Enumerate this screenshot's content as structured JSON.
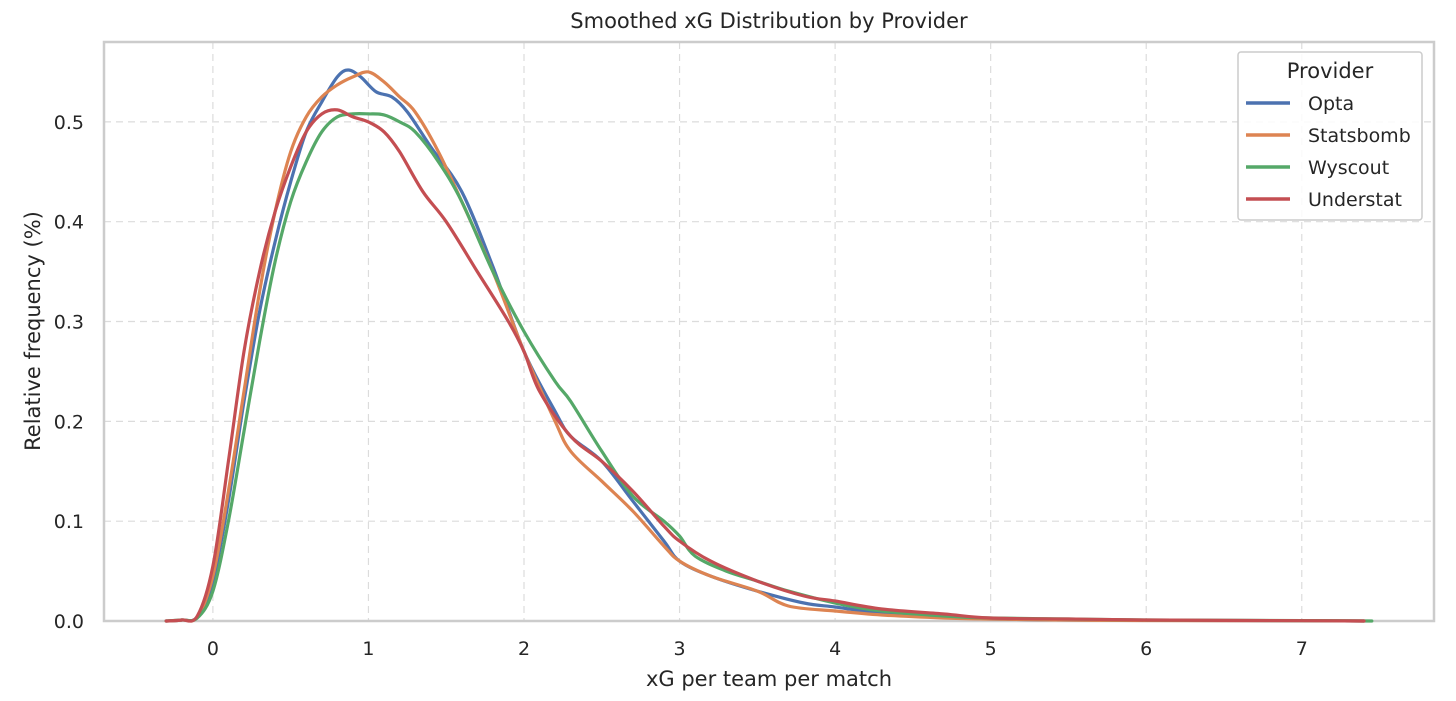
{
  "chart_data": {
    "type": "line",
    "title": "Smoothed xG Distribution by Provider",
    "xlabel": "xG per team per match",
    "ylabel": "Relative frequency (%)",
    "xlim": [
      -0.7,
      7.85
    ],
    "ylim": [
      0,
      0.58
    ],
    "xticks": [
      0,
      1,
      2,
      3,
      4,
      5,
      6,
      7
    ],
    "xtick_labels": [
      "0",
      "1",
      "2",
      "3",
      "4",
      "5",
      "6",
      "7"
    ],
    "yticks": [
      0.0,
      0.1,
      0.2,
      0.3,
      0.4,
      0.5
    ],
    "ytick_labels": [
      "0.0",
      "0.1",
      "0.2",
      "0.3",
      "0.4",
      "0.5"
    ],
    "grid": true,
    "legend": {
      "title": "Provider",
      "position": "top-right"
    },
    "series": [
      {
        "name": "Opta",
        "color": "#4c72b0",
        "points": [
          [
            -0.3,
            0.0
          ],
          [
            -0.2,
            0.001
          ],
          [
            -0.1,
            0.004
          ],
          [
            0.0,
            0.04
          ],
          [
            0.1,
            0.12
          ],
          [
            0.2,
            0.22
          ],
          [
            0.3,
            0.31
          ],
          [
            0.4,
            0.38
          ],
          [
            0.5,
            0.44
          ],
          [
            0.6,
            0.49
          ],
          [
            0.7,
            0.52
          ],
          [
            0.8,
            0.545
          ],
          [
            0.87,
            0.552
          ],
          [
            0.95,
            0.545
          ],
          [
            1.05,
            0.53
          ],
          [
            1.15,
            0.525
          ],
          [
            1.25,
            0.51
          ],
          [
            1.4,
            0.475
          ],
          [
            1.6,
            0.43
          ],
          [
            1.8,
            0.355
          ],
          [
            2.0,
            0.27
          ],
          [
            2.2,
            0.21
          ],
          [
            2.3,
            0.185
          ],
          [
            2.5,
            0.16
          ],
          [
            2.7,
            0.12
          ],
          [
            2.9,
            0.08
          ],
          [
            3.0,
            0.06
          ],
          [
            3.2,
            0.045
          ],
          [
            3.5,
            0.03
          ],
          [
            3.8,
            0.018
          ],
          [
            4.0,
            0.014
          ],
          [
            4.3,
            0.008
          ],
          [
            4.7,
            0.004
          ],
          [
            5.0,
            0.002
          ],
          [
            5.5,
            0.001
          ],
          [
            6.0,
            0.0007
          ],
          [
            7.0,
            0.0003
          ],
          [
            7.4,
            0.0
          ]
        ]
      },
      {
        "name": "Statsbomb",
        "color": "#dd8452",
        "points": [
          [
            -0.3,
            0.0
          ],
          [
            -0.2,
            0.001
          ],
          [
            -0.1,
            0.004
          ],
          [
            0.0,
            0.045
          ],
          [
            0.1,
            0.13
          ],
          [
            0.2,
            0.23
          ],
          [
            0.3,
            0.33
          ],
          [
            0.4,
            0.41
          ],
          [
            0.5,
            0.47
          ],
          [
            0.6,
            0.505
          ],
          [
            0.7,
            0.525
          ],
          [
            0.8,
            0.537
          ],
          [
            0.9,
            0.545
          ],
          [
            1.0,
            0.55
          ],
          [
            1.1,
            0.54
          ],
          [
            1.2,
            0.525
          ],
          [
            1.3,
            0.51
          ],
          [
            1.45,
            0.47
          ],
          [
            1.6,
            0.42
          ],
          [
            1.8,
            0.35
          ],
          [
            2.0,
            0.27
          ],
          [
            2.2,
            0.2
          ],
          [
            2.3,
            0.17
          ],
          [
            2.5,
            0.14
          ],
          [
            2.7,
            0.11
          ],
          [
            2.9,
            0.075
          ],
          [
            3.0,
            0.06
          ],
          [
            3.2,
            0.045
          ],
          [
            3.5,
            0.03
          ],
          [
            3.7,
            0.015
          ],
          [
            4.0,
            0.01
          ],
          [
            4.3,
            0.006
          ],
          [
            4.7,
            0.003
          ],
          [
            5.0,
            0.002
          ],
          [
            5.5,
            0.001
          ],
          [
            6.0,
            0.0005
          ],
          [
            7.0,
            0.0003
          ],
          [
            7.4,
            0.0
          ]
        ]
      },
      {
        "name": "Wyscout",
        "color": "#55a868",
        "points": [
          [
            -0.3,
            0.0
          ],
          [
            -0.2,
            0.001
          ],
          [
            -0.1,
            0.003
          ],
          [
            0.0,
            0.03
          ],
          [
            0.1,
            0.1
          ],
          [
            0.2,
            0.19
          ],
          [
            0.3,
            0.28
          ],
          [
            0.4,
            0.36
          ],
          [
            0.5,
            0.42
          ],
          [
            0.6,
            0.46
          ],
          [
            0.7,
            0.49
          ],
          [
            0.8,
            0.505
          ],
          [
            0.9,
            0.508
          ],
          [
            1.0,
            0.508
          ],
          [
            1.1,
            0.507
          ],
          [
            1.2,
            0.5
          ],
          [
            1.3,
            0.49
          ],
          [
            1.45,
            0.46
          ],
          [
            1.6,
            0.42
          ],
          [
            1.8,
            0.35
          ],
          [
            2.0,
            0.29
          ],
          [
            2.2,
            0.24
          ],
          [
            2.3,
            0.22
          ],
          [
            2.5,
            0.17
          ],
          [
            2.7,
            0.125
          ],
          [
            2.9,
            0.1
          ],
          [
            3.0,
            0.085
          ],
          [
            3.1,
            0.065
          ],
          [
            3.3,
            0.05
          ],
          [
            3.5,
            0.04
          ],
          [
            3.7,
            0.03
          ],
          [
            4.0,
            0.018
          ],
          [
            4.3,
            0.01
          ],
          [
            4.7,
            0.005
          ],
          [
            5.0,
            0.003
          ],
          [
            5.5,
            0.002
          ],
          [
            6.0,
            0.001
          ],
          [
            7.0,
            0.0004
          ],
          [
            7.45,
            0.0
          ]
        ]
      },
      {
        "name": "Understat",
        "color": "#c44e52",
        "points": [
          [
            -0.3,
            0.0
          ],
          [
            -0.2,
            0.001
          ],
          [
            -0.1,
            0.005
          ],
          [
            0.0,
            0.055
          ],
          [
            0.1,
            0.16
          ],
          [
            0.2,
            0.27
          ],
          [
            0.3,
            0.35
          ],
          [
            0.4,
            0.41
          ],
          [
            0.5,
            0.455
          ],
          [
            0.6,
            0.49
          ],
          [
            0.7,
            0.508
          ],
          [
            0.8,
            0.512
          ],
          [
            0.9,
            0.505
          ],
          [
            1.0,
            0.5
          ],
          [
            1.1,
            0.49
          ],
          [
            1.2,
            0.47
          ],
          [
            1.35,
            0.43
          ],
          [
            1.5,
            0.4
          ],
          [
            1.7,
            0.35
          ],
          [
            1.9,
            0.3
          ],
          [
            2.0,
            0.27
          ],
          [
            2.1,
            0.23
          ],
          [
            2.3,
            0.185
          ],
          [
            2.5,
            0.16
          ],
          [
            2.7,
            0.13
          ],
          [
            2.9,
            0.095
          ],
          [
            3.0,
            0.08
          ],
          [
            3.2,
            0.06
          ],
          [
            3.5,
            0.04
          ],
          [
            3.8,
            0.025
          ],
          [
            4.0,
            0.02
          ],
          [
            4.3,
            0.012
          ],
          [
            4.7,
            0.007
          ],
          [
            5.0,
            0.003
          ],
          [
            5.5,
            0.002
          ],
          [
            6.0,
            0.001
          ],
          [
            7.0,
            0.0003
          ],
          [
            7.4,
            0.0
          ]
        ]
      }
    ]
  }
}
